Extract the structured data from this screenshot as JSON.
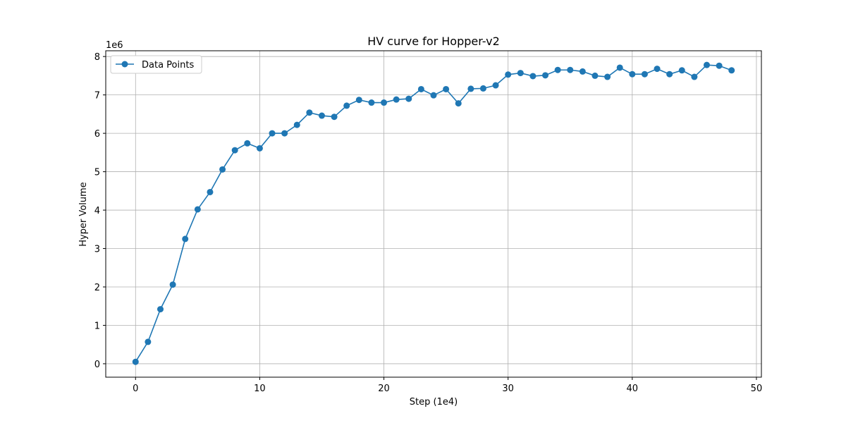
{
  "chart_data": {
    "type": "line",
    "title": "HV curve for Hopper-v2",
    "xlabel": "Step (1e4)",
    "ylabel": "Hyper Volume",
    "y_offset_label": "1e6",
    "xlim": [
      -2.4,
      50.4
    ],
    "ylim": [
      -0.35,
      8.15
    ],
    "x_ticks": [
      0,
      10,
      20,
      30,
      40,
      50
    ],
    "x_tick_labels": [
      "0",
      "10",
      "20",
      "30",
      "40",
      "50"
    ],
    "y_ticks": [
      0,
      1,
      2,
      3,
      4,
      5,
      6,
      7,
      8
    ],
    "y_tick_labels": [
      "0",
      "1",
      "2",
      "3",
      "4",
      "5",
      "6",
      "7",
      "8"
    ],
    "grid": true,
    "legend_position": "top-left",
    "series": [
      {
        "name": "Data Points",
        "color": "#1f77b4",
        "marker": "circle",
        "x": [
          0,
          1,
          2,
          3,
          4,
          5,
          6,
          7,
          8,
          9,
          10,
          11,
          12,
          13,
          14,
          15,
          16,
          17,
          18,
          19,
          20,
          21,
          22,
          23,
          24,
          25,
          26,
          27,
          28,
          29,
          30,
          31,
          32,
          33,
          34,
          35,
          36,
          37,
          38,
          39,
          40,
          41,
          42,
          43,
          44,
          45,
          46,
          47,
          48
        ],
        "y": [
          0.05,
          0.57,
          1.42,
          2.06,
          3.25,
          4.02,
          4.47,
          5.06,
          5.56,
          5.74,
          5.61,
          6.0,
          6.0,
          6.22,
          6.54,
          6.46,
          6.43,
          6.72,
          6.87,
          6.8,
          6.8,
          6.88,
          6.9,
          7.15,
          6.99,
          7.15,
          6.78,
          7.16,
          7.17,
          7.25,
          7.53,
          7.57,
          7.49,
          7.51,
          7.65,
          7.65,
          7.61,
          7.5,
          7.47,
          7.71,
          7.54,
          7.54,
          7.68,
          7.54,
          7.64,
          7.47,
          7.78,
          7.76,
          7.64
        ]
      }
    ]
  }
}
